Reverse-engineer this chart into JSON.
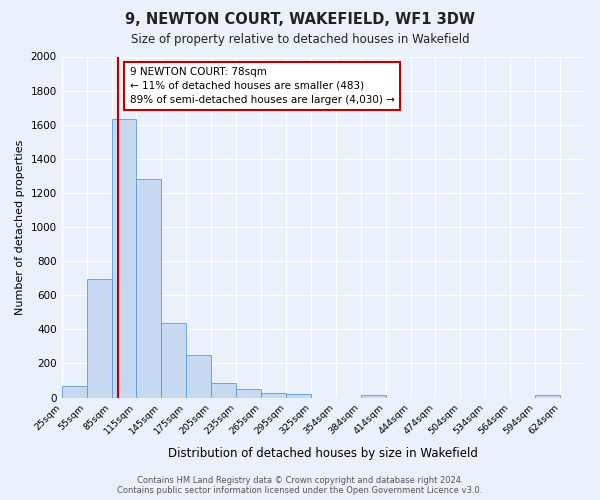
{
  "title": "9, NEWTON COURT, WAKEFIELD, WF1 3DW",
  "subtitle": "Size of property relative to detached houses in Wakefield",
  "xlabel": "Distribution of detached houses by size in Wakefield",
  "ylabel": "Number of detached properties",
  "bar_labels": [
    "25sqm",
    "55sqm",
    "85sqm",
    "115sqm",
    "145sqm",
    "175sqm",
    "205sqm",
    "235sqm",
    "265sqm",
    "295sqm",
    "325sqm",
    "354sqm",
    "384sqm",
    "414sqm",
    "444sqm",
    "474sqm",
    "504sqm",
    "534sqm",
    "564sqm",
    "594sqm",
    "624sqm"
  ],
  "bar_values": [
    65,
    695,
    1635,
    1280,
    440,
    252,
    88,
    50,
    28,
    20,
    0,
    0,
    15,
    0,
    0,
    0,
    0,
    0,
    0,
    15,
    0
  ],
  "bar_color": "#c6d9f1",
  "bar_edge_color": "#5b9bd5",
  "ylim": [
    0,
    2000
  ],
  "yticks": [
    0,
    200,
    400,
    600,
    800,
    1000,
    1200,
    1400,
    1600,
    1800,
    2000
  ],
  "vline_color": "#c00000",
  "annotation_line1": "9 NEWTON COURT: 78sqm",
  "annotation_line2": "← 11% of detached houses are smaller (483)",
  "annotation_line3": "89% of semi-detached houses are larger (4,030) →",
  "footer_line1": "Contains HM Land Registry data © Crown copyright and database right 2024.",
  "footer_line2": "Contains public sector information licensed under the Open Government Licence v3.0.",
  "background_color": "#eaf1fb",
  "plot_bg_color": "#eaf1fb",
  "grid_color": "#ffffff",
  "title_fontsize": 10.5,
  "subtitle_fontsize": 8.5
}
